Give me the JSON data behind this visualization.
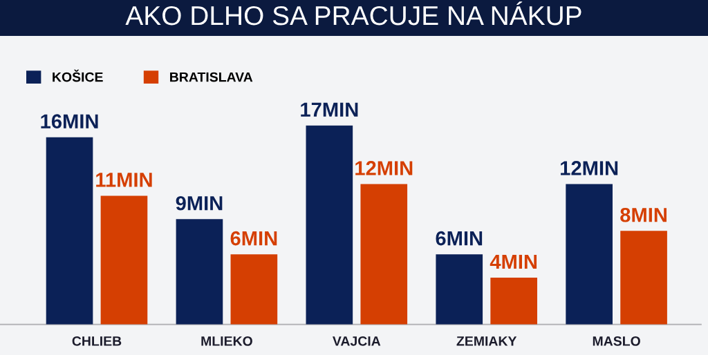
{
  "chart_data": {
    "type": "bar",
    "title": "AKO DLHO SA PRACUJE NA NÁKUP",
    "categories": [
      "CHLIEB",
      "MLIEKO",
      "VAJCIA",
      "ZEMIAKY",
      "MASLO"
    ],
    "series": [
      {
        "name": "KOŠICE",
        "color": "#0b2157",
        "values": [
          16,
          9,
          17,
          6,
          12
        ],
        "value_labels": [
          "16MIN",
          "9MIN",
          "17MIN",
          "6MIN",
          "12MIN"
        ]
      },
      {
        "name": "BRATISLAVA",
        "color": "#d53f02",
        "values": [
          11,
          6,
          12,
          4,
          8
        ],
        "value_labels": [
          "11MIN",
          "6MIN",
          "12MIN",
          "4MIN",
          "8MIN"
        ]
      }
    ],
    "legend": "top left"
  }
}
